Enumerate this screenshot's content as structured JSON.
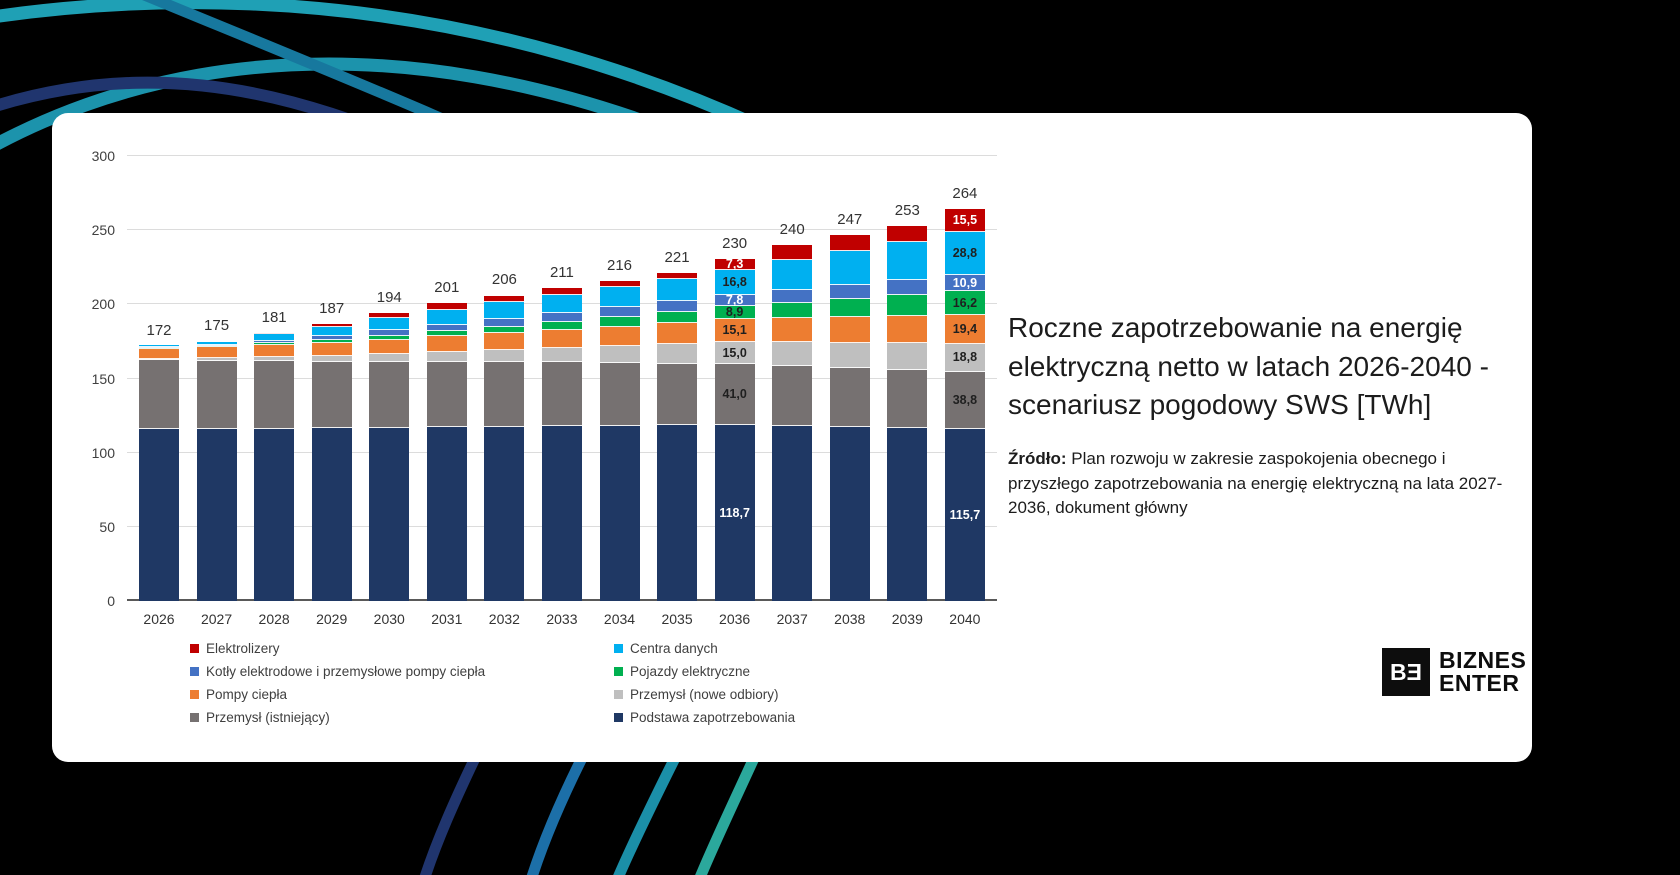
{
  "chart_data": {
    "type": "stacked-bar",
    "unit": "TWh",
    "ylim": [
      0,
      300
    ],
    "yticks": [
      0,
      50,
      100,
      150,
      200,
      250,
      300
    ],
    "grid": true,
    "categories": [
      "2026",
      "2027",
      "2028",
      "2029",
      "2030",
      "2031",
      "2032",
      "2033",
      "2034",
      "2035",
      "2036",
      "2037",
      "2038",
      "2039",
      "2040"
    ],
    "totals": [
      172,
      175,
      181,
      187,
      194,
      201,
      206,
      211,
      216,
      221,
      230,
      240,
      247,
      253,
      264
    ],
    "labeled_years": [
      "2036",
      "2040"
    ],
    "series": [
      {
        "name": "Podstawa zapotrzebowania",
        "color": "#1F3864",
        "dark": true,
        "values": [
          115.8,
          115.9,
          116.2,
          116.4,
          116.7,
          117.0,
          117.4,
          117.8,
          118.2,
          118.5,
          118.7,
          118.0,
          117.2,
          116.5,
          115.7
        ]
      },
      {
        "name": "Przemysł (istniejący)",
        "color": "#767171",
        "dark": false,
        "values": [
          46.5,
          46.0,
          45.5,
          45.0,
          44.5,
          44.0,
          43.5,
          43.0,
          42.3,
          41.6,
          41.0,
          40.4,
          39.9,
          39.3,
          38.8
        ]
      },
      {
        "name": "Przemysł (nowe odbiory)",
        "color": "#BFBFBF",
        "dark": false,
        "values": [
          1.2,
          2.0,
          3.0,
          4.0,
          5.5,
          7.0,
          8.5,
          10.0,
          11.5,
          13.2,
          15.0,
          16.0,
          17.0,
          17.9,
          18.8
        ]
      },
      {
        "name": "Pompy ciepła",
        "color": "#ED7D31",
        "dark": false,
        "values": [
          6.5,
          7.2,
          8.0,
          8.8,
          9.6,
          10.4,
          11.2,
          12.0,
          13.0,
          14.0,
          15.1,
          16.2,
          17.3,
          18.3,
          19.4
        ]
      },
      {
        "name": "Pojazdy elektryczne",
        "color": "#00B050",
        "dark": false,
        "values": [
          0.4,
          0.7,
          1.2,
          1.8,
          2.6,
          3.4,
          4.4,
          5.4,
          6.5,
          7.7,
          8.9,
          10.6,
          12.4,
          14.3,
          16.2
        ]
      },
      {
        "name": "Kotły elektrodowe i przemysłowe pompy ciepła",
        "color": "#4472C4",
        "dark": true,
        "values": [
          0.4,
          0.8,
          1.6,
          2.5,
          3.5,
          4.4,
          5.2,
          6.0,
          6.6,
          7.2,
          7.8,
          8.6,
          9.4,
          10.1,
          10.9
        ]
      },
      {
        "name": "Centra danych",
        "color": "#00B0F0",
        "dark": false,
        "values": [
          1.2,
          2.4,
          4.5,
          6.5,
          8.6,
          10.3,
          11.3,
          12.3,
          13.4,
          14.8,
          16.8,
          19.9,
          22.7,
          25.7,
          28.8
        ]
      },
      {
        "name": "Elektrolizery",
        "color": "#C00000",
        "dark": true,
        "values": [
          0.0,
          0.0,
          1.0,
          2.0,
          3.0,
          4.5,
          4.5,
          4.5,
          4.5,
          4.0,
          7.3,
          10.3,
          11.1,
          10.9,
          15.5
        ]
      }
    ]
  },
  "legend": {
    "columns": [
      {
        "items": [
          {
            "label": "Elektrolizery",
            "color": "#C00000"
          },
          {
            "label": "Kotły elektrodowe i przemysłowe pompy ciepła",
            "color": "#4472C4"
          },
          {
            "label": "Pompy ciepła",
            "color": "#ED7D31"
          },
          {
            "label": "Przemysł (istniejący)",
            "color": "#767171"
          }
        ]
      },
      {
        "items": [
          {
            "label": "Centra danych",
            "color": "#00B0F0"
          },
          {
            "label": "Pojazdy elektryczne",
            "color": "#00B050"
          },
          {
            "label": "Przemysł (nowe odbiory)",
            "color": "#BFBFBF"
          },
          {
            "label": "Podstawa zapotrzebowania",
            "color": "#1F3864"
          }
        ]
      }
    ]
  },
  "panel": {
    "title": "Roczne zapotrzebowanie na energię elektryczną netto w latach 2026-2040 - scenariusz pogodowy SWS [TWh]",
    "source_label": "Źródło:",
    "source_text": " Plan rozwoju w zakresie zaspokojenia obecnego i przyszłego zapotrzebowania na energię elektryczną na lata 2027-2036, dokument główny"
  },
  "logo": {
    "mark": "BƎ",
    "line1": "BIZNES",
    "line2": "ENTER"
  },
  "decor": {
    "arc_teal": "#1FA0B5",
    "arc_blue": "#17789E",
    "arc_navy": "#20356E",
    "arc_green_teal": "#2BA89C"
  }
}
